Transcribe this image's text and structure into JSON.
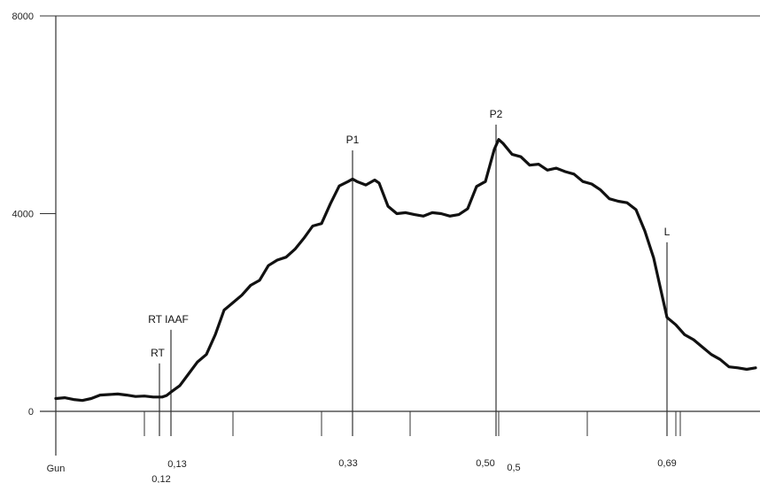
{
  "chart_data": {
    "type": "line",
    "title": "",
    "xlabel": "",
    "ylabel": "",
    "ylim": [
      0,
      8000
    ],
    "xlim": [
      0,
      0.79
    ],
    "grid": false,
    "y_ticks": [
      "0",
      "4000",
      "8000"
    ],
    "x_label_start": "Gun",
    "series": [
      {
        "values": [
          [
            0.0,
            260
          ],
          [
            0.01,
            275
          ],
          [
            0.02,
            240
          ],
          [
            0.03,
            220
          ],
          [
            0.04,
            260
          ],
          [
            0.05,
            330
          ],
          [
            0.06,
            340
          ],
          [
            0.07,
            350
          ],
          [
            0.08,
            330
          ],
          [
            0.09,
            300
          ],
          [
            0.1,
            310
          ],
          [
            0.11,
            290
          ],
          [
            0.12,
            290
          ],
          [
            0.125,
            320
          ],
          [
            0.13,
            390
          ],
          [
            0.14,
            520
          ],
          [
            0.15,
            760
          ],
          [
            0.16,
            1000
          ],
          [
            0.17,
            1150
          ],
          [
            0.18,
            1550
          ],
          [
            0.19,
            2050
          ],
          [
            0.2,
            2200
          ],
          [
            0.21,
            2350
          ],
          [
            0.22,
            2550
          ],
          [
            0.23,
            2650
          ],
          [
            0.24,
            2950
          ],
          [
            0.25,
            3060
          ],
          [
            0.26,
            3120
          ],
          [
            0.27,
            3280
          ],
          [
            0.28,
            3500
          ],
          [
            0.29,
            3750
          ],
          [
            0.3,
            3800
          ],
          [
            0.31,
            4200
          ],
          [
            0.32,
            4560
          ],
          [
            0.33,
            4650
          ],
          [
            0.335,
            4700
          ],
          [
            0.34,
            4650
          ],
          [
            0.35,
            4580
          ],
          [
            0.36,
            4680
          ],
          [
            0.365,
            4620
          ],
          [
            0.375,
            4150
          ],
          [
            0.385,
            4000
          ],
          [
            0.395,
            4020
          ],
          [
            0.405,
            3980
          ],
          [
            0.415,
            3950
          ],
          [
            0.425,
            4020
          ],
          [
            0.435,
            4000
          ],
          [
            0.445,
            3950
          ],
          [
            0.455,
            3980
          ],
          [
            0.465,
            4100
          ],
          [
            0.475,
            4550
          ],
          [
            0.485,
            4650
          ],
          [
            0.495,
            5300
          ],
          [
            0.5,
            5500
          ],
          [
            0.505,
            5420
          ],
          [
            0.515,
            5200
          ],
          [
            0.525,
            5150
          ],
          [
            0.535,
            4980
          ],
          [
            0.545,
            5000
          ],
          [
            0.555,
            4880
          ],
          [
            0.565,
            4920
          ],
          [
            0.575,
            4850
          ],
          [
            0.585,
            4800
          ],
          [
            0.595,
            4650
          ],
          [
            0.605,
            4600
          ],
          [
            0.615,
            4480
          ],
          [
            0.625,
            4300
          ],
          [
            0.635,
            4250
          ],
          [
            0.645,
            4220
          ],
          [
            0.655,
            4080
          ],
          [
            0.665,
            3650
          ],
          [
            0.675,
            3100
          ],
          [
            0.685,
            2300
          ],
          [
            0.69,
            1900
          ],
          [
            0.7,
            1750
          ],
          [
            0.71,
            1550
          ],
          [
            0.72,
            1450
          ],
          [
            0.73,
            1300
          ],
          [
            0.74,
            1150
          ],
          [
            0.75,
            1050
          ],
          [
            0.76,
            900
          ],
          [
            0.77,
            880
          ],
          [
            0.78,
            850
          ],
          [
            0.79,
            880
          ]
        ]
      }
    ],
    "x_ticks": [
      0.1,
      0.2,
      0.3,
      0.4,
      0.5,
      0.6,
      0.7
    ],
    "x_tick_labels": [
      {
        "x": 0.12,
        "label": "0,12"
      },
      {
        "x": 0.13,
        "label": "0,13"
      },
      {
        "x": 0.33,
        "label": "0,33"
      },
      {
        "x": 0.5,
        "label": "0,50"
      },
      {
        "x": 0.505,
        "label": "0,5"
      },
      {
        "x": 0.69,
        "label": "0,69"
      }
    ],
    "markers": [
      {
        "name": "RT",
        "x": 0.117,
        "level": 970
      },
      {
        "name": "RT IAAF",
        "x": 0.13,
        "level": 1650
      },
      {
        "name": "P1",
        "x": 0.335,
        "level": 5280
      },
      {
        "name": "P2",
        "x": 0.497,
        "level": 5800
      },
      {
        "name": "L",
        "x": 0.69,
        "level": 3420
      }
    ]
  }
}
